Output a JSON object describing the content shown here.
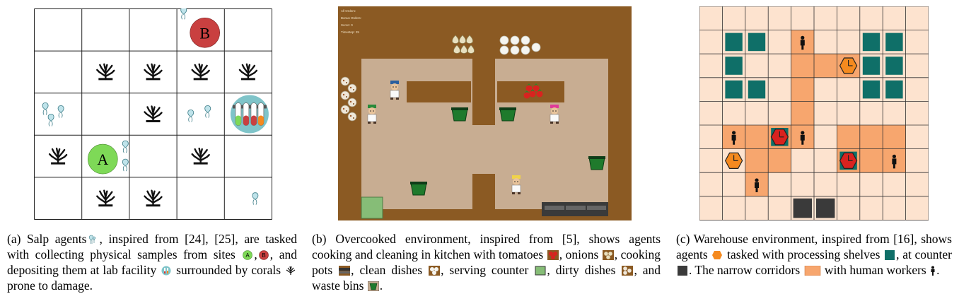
{
  "captions": {
    "a": {
      "label": "(a)",
      "t1": "Salp agents",
      "t2": ", inspired from [24], [25], are tasked with collecting physical samples from sites",
      "t3": ",",
      "t4": ", and depositing them at lab facility",
      "t5": "surrounded by corals",
      "t6": "prone to damage."
    },
    "b": {
      "label": "(b)",
      "t1": "Overcooked environment, inspired from [5], shows agents cooking and cleaning in kitchen with tomatoes",
      "t2": ", onions",
      "t3": ", cooking pots",
      "t4": ", clean dishes",
      "t5": ", serving counter",
      "t6": ", dirty dishes",
      "t7": ", and waste bins",
      "t8": "."
    },
    "c": {
      "label": "(c)",
      "t1": "Warehouse environment, inspired from [16], shows agents",
      "t2": "tasked with processing shelves",
      "t3": ", at counter",
      "t4": ". The narrow corridors",
      "t5": "with human workers",
      "t6": "."
    }
  },
  "salp_grid": {
    "site_a_label": "A",
    "site_b_label": "B"
  },
  "overcooked_hud": {
    "line1": "All Orders:",
    "line2": "Bonus Orders:",
    "line3": "Score: 0",
    "line4": "Timestep: 25"
  },
  "colors": {
    "site_a": "#7ed957",
    "site_b": "#c94040",
    "lab": "#7fc4c9",
    "kitchen_bg": "#8b5a23",
    "kitchen_floor": "#c8ad92",
    "serving_counter": "#86bd77",
    "warehouse_bg": "#fde3cf",
    "corridor": "#f7a66e",
    "shelf": "#0f6f68",
    "counter": "#3a3a3a",
    "agent": "#f58a1f"
  }
}
